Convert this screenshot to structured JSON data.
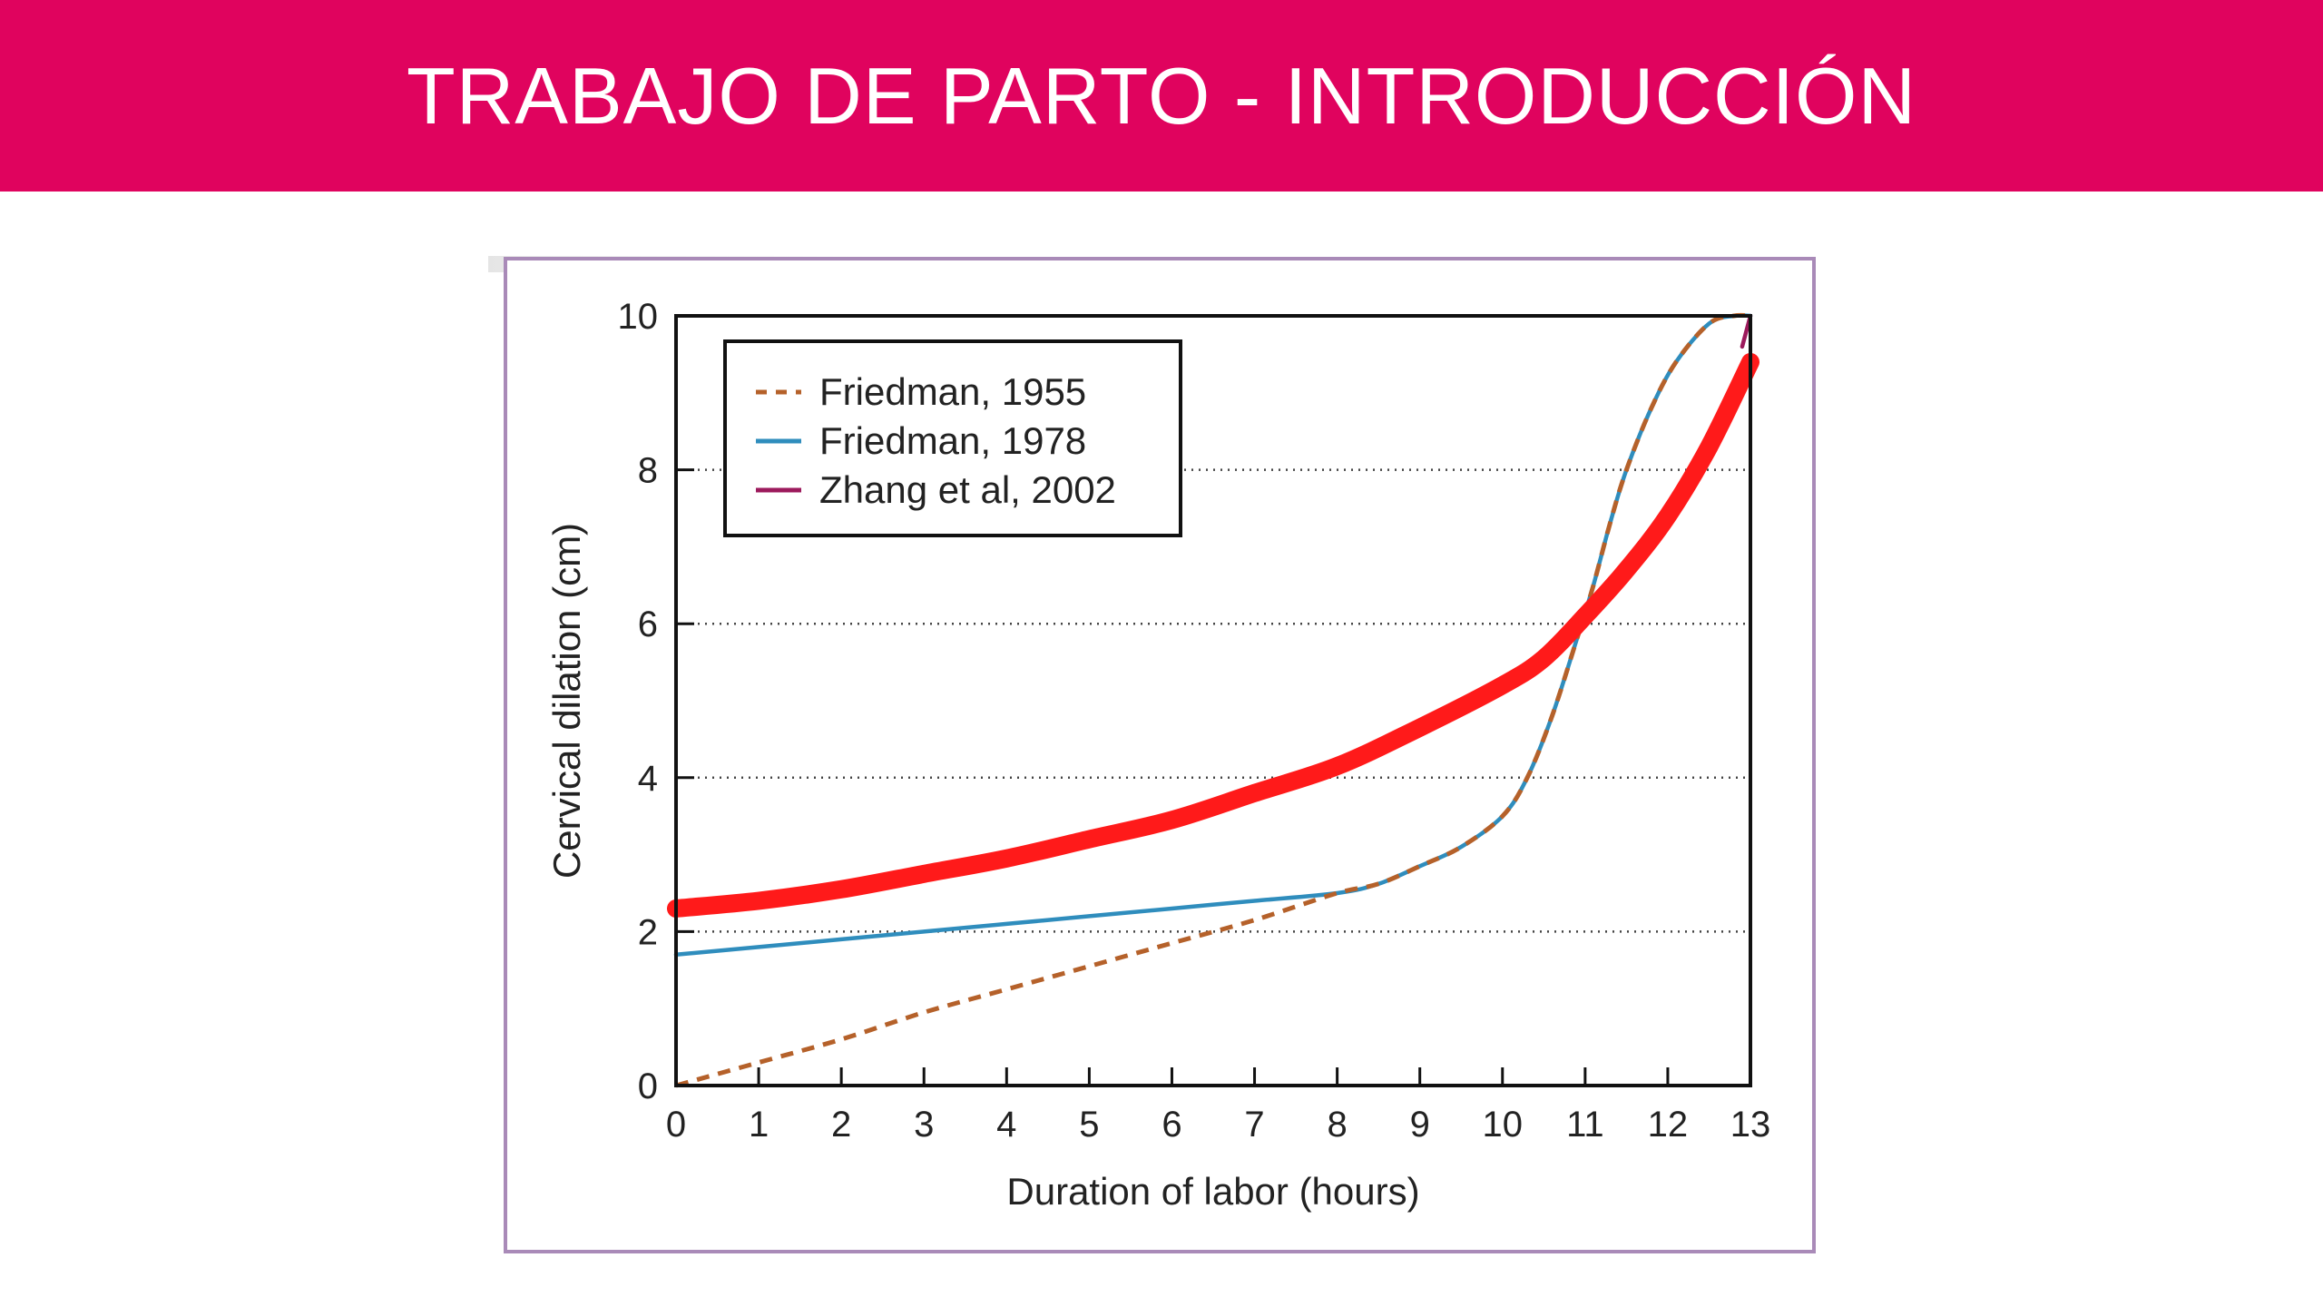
{
  "slide": {
    "title": "TRABAJO DE PARTO - INTRODUCCIÓN",
    "header_color": "#e0035e",
    "frame_color": "#a98ab8"
  },
  "chart_data": {
    "type": "line",
    "xlabel": "Duration of labor (hours)",
    "ylabel": "Cervical dilation (cm)",
    "xlim": [
      0,
      13
    ],
    "ylim": [
      0,
      10
    ],
    "x_ticks": [
      "0",
      "1",
      "2",
      "3",
      "4",
      "5",
      "6",
      "7",
      "8",
      "9",
      "10",
      "11",
      "12",
      "13"
    ],
    "y_ticks": [
      "0",
      "2",
      "4",
      "6",
      "8",
      "10"
    ],
    "grid": "dotted horizontal lines at y = 2, 4, 6, 8",
    "legend_position": "top-left",
    "series": [
      {
        "name": "Friedman, 1955",
        "color": "#b5612a",
        "style": "dashed",
        "points": [
          [
            0,
            0
          ],
          [
            1,
            0.3
          ],
          [
            2,
            0.6
          ],
          [
            3,
            0.95
          ],
          [
            4,
            1.25
          ],
          [
            5,
            1.55
          ],
          [
            6,
            1.85
          ],
          [
            7,
            2.15
          ],
          [
            8,
            2.5
          ],
          [
            8.5,
            2.62
          ],
          [
            9,
            2.85
          ],
          [
            9.5,
            3.1
          ],
          [
            10,
            3.5
          ],
          [
            10.3,
            4.0
          ],
          [
            10.6,
            4.8
          ],
          [
            10.9,
            5.8
          ],
          [
            11.1,
            6.5
          ],
          [
            11.3,
            7.3
          ],
          [
            11.5,
            8.0
          ],
          [
            11.8,
            8.8
          ],
          [
            12.1,
            9.4
          ],
          [
            12.5,
            9.9
          ],
          [
            12.8,
            10.0
          ],
          [
            13,
            10.0
          ]
        ]
      },
      {
        "name": "Friedman, 1978",
        "color": "#2f8dbd",
        "style": "solid",
        "points": [
          [
            0,
            1.7
          ],
          [
            1,
            1.8
          ],
          [
            2,
            1.9
          ],
          [
            3,
            2.0
          ],
          [
            4,
            2.1
          ],
          [
            5,
            2.2
          ],
          [
            6,
            2.3
          ],
          [
            7,
            2.4
          ],
          [
            8,
            2.5
          ],
          [
            8.5,
            2.62
          ],
          [
            9,
            2.85
          ],
          [
            9.5,
            3.1
          ],
          [
            10,
            3.5
          ],
          [
            10.3,
            4.0
          ],
          [
            10.6,
            4.8
          ],
          [
            10.9,
            5.8
          ],
          [
            11.1,
            6.5
          ],
          [
            11.3,
            7.3
          ],
          [
            11.5,
            8.0
          ],
          [
            11.8,
            8.8
          ],
          [
            12.1,
            9.4
          ],
          [
            12.5,
            9.9
          ],
          [
            12.8,
            10.0
          ],
          [
            13,
            10.0
          ]
        ]
      },
      {
        "name": "Zhang et al, 2002",
        "color": "#9c1a5c",
        "style": "solid",
        "points": [
          [
            12.9,
            9.6
          ],
          [
            13,
            10.0
          ]
        ]
      },
      {
        "name": "",
        "color": "#ff1a1a",
        "style": "thick-solid",
        "points": [
          [
            0,
            2.3
          ],
          [
            1,
            2.4
          ],
          [
            2,
            2.55
          ],
          [
            3,
            2.75
          ],
          [
            4,
            2.95
          ],
          [
            5,
            3.2
          ],
          [
            6,
            3.45
          ],
          [
            7,
            3.8
          ],
          [
            8,
            4.15
          ],
          [
            9,
            4.65
          ],
          [
            10,
            5.2
          ],
          [
            10.5,
            5.55
          ],
          [
            11,
            6.1
          ],
          [
            11.5,
            6.7
          ],
          [
            12,
            7.4
          ],
          [
            12.5,
            8.3
          ],
          [
            13,
            9.4
          ]
        ]
      }
    ]
  }
}
